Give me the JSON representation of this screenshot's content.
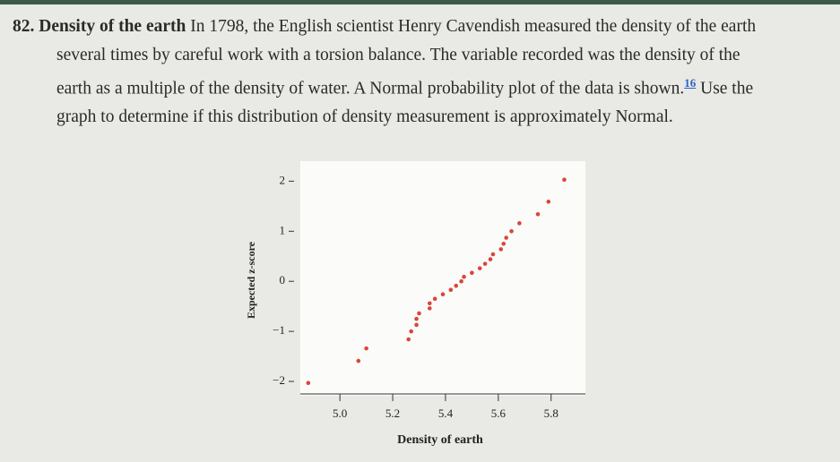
{
  "problem": {
    "number": "82.",
    "heading": "Density of the earth",
    "text_before": "In 1798, the English scientist Henry Cavendish measured the density of the earth several times by careful work with a torsion balance. The variable recorded was the density of the earth as a multiple of the density of water. A Normal probability plot of the data is shown.",
    "footnote": "16",
    "text_after": "Use the graph to determine if this distribution of density measurement is approximately Normal."
  },
  "chart_data": {
    "type": "scatter",
    "xlabel": "Density of earth",
    "ylabel": "Expected z-score",
    "color": "#d9463a",
    "x": [
      4.88,
      5.07,
      5.1,
      5.26,
      5.27,
      5.29,
      5.29,
      5.3,
      5.34,
      5.34,
      5.36,
      5.39,
      5.42,
      5.44,
      5.46,
      5.47,
      5.5,
      5.53,
      5.55,
      5.57,
      5.58,
      5.61,
      5.62,
      5.63,
      5.65,
      5.68,
      5.75,
      5.79,
      5.85
    ],
    "values": [
      -2.03,
      -1.59,
      -1.34,
      -1.16,
      -1.0,
      -0.87,
      -0.75,
      -0.64,
      -0.54,
      -0.44,
      -0.35,
      -0.26,
      -0.17,
      -0.09,
      0,
      0.09,
      0.17,
      0.26,
      0.35,
      0.44,
      0.54,
      0.64,
      0.75,
      0.87,
      1.0,
      1.16,
      1.34,
      1.59,
      2.03
    ],
    "xlim": [
      4.85,
      5.93
    ],
    "ylim": [
      -2.25,
      2.4
    ],
    "xticks": [
      {
        "value": 5.0,
        "label": "5.0"
      },
      5.2,
      5.4,
      5.6,
      5.8
    ],
    "yticks": [
      2,
      1,
      0,
      {
        "value": -1,
        "label": "−1"
      },
      {
        "value": -2,
        "label": "−2"
      }
    ]
  }
}
